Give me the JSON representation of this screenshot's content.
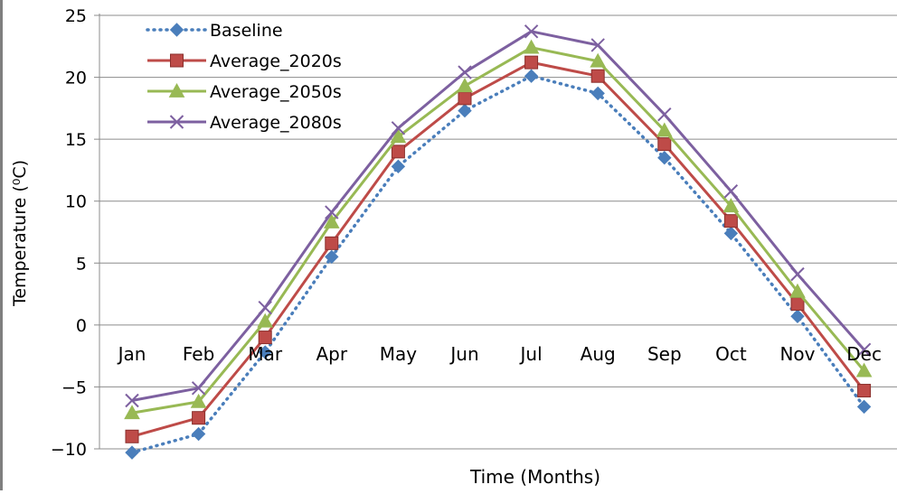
{
  "chart_data": {
    "type": "line",
    "title": "",
    "xlabel": "Time (Months)",
    "ylabel": "Temperature (⁰C)",
    "ylim": [
      -10,
      25
    ],
    "yticks": [
      -10,
      -5,
      0,
      5,
      10,
      15,
      20,
      25
    ],
    "ytick_labels": [
      "−10",
      "−5",
      "0",
      "5",
      "10",
      "15",
      "20",
      "25"
    ],
    "categories": [
      "Jan",
      "Feb",
      "Mar",
      "Apr",
      "May",
      "Jun",
      "Jul",
      "Aug",
      "Sep",
      "Oct",
      "Nov",
      "Dec"
    ],
    "grid": "horizontal",
    "legend_position": "top-left",
    "series": [
      {
        "name": "Baseline",
        "color": "#4a7ebb",
        "marker": "diamond",
        "dash": "dotted",
        "values": [
          -10.3,
          -8.8,
          -2.2,
          5.5,
          12.8,
          17.3,
          20.1,
          18.7,
          13.5,
          7.4,
          0.7,
          -6.6
        ]
      },
      {
        "name": "Average_2020s",
        "color": "#be4b48",
        "marker": "square",
        "dash": "solid",
        "values": [
          -9.0,
          -7.5,
          -1.0,
          6.6,
          14.0,
          18.3,
          21.2,
          20.1,
          14.6,
          8.4,
          1.7,
          -5.3
        ]
      },
      {
        "name": "Average_2050s",
        "color": "#98b954",
        "marker": "triangle",
        "dash": "solid",
        "values": [
          -7.1,
          -6.2,
          0.3,
          8.3,
          15.2,
          19.3,
          22.4,
          21.3,
          15.7,
          9.6,
          2.7,
          -3.7
        ]
      },
      {
        "name": "Average_2080s",
        "color": "#7d60a0",
        "marker": "x",
        "dash": "solid",
        "values": [
          -6.1,
          -5.1,
          1.4,
          9.1,
          15.9,
          20.4,
          23.7,
          22.6,
          17.0,
          10.8,
          4.1,
          -2.0
        ]
      }
    ]
  }
}
